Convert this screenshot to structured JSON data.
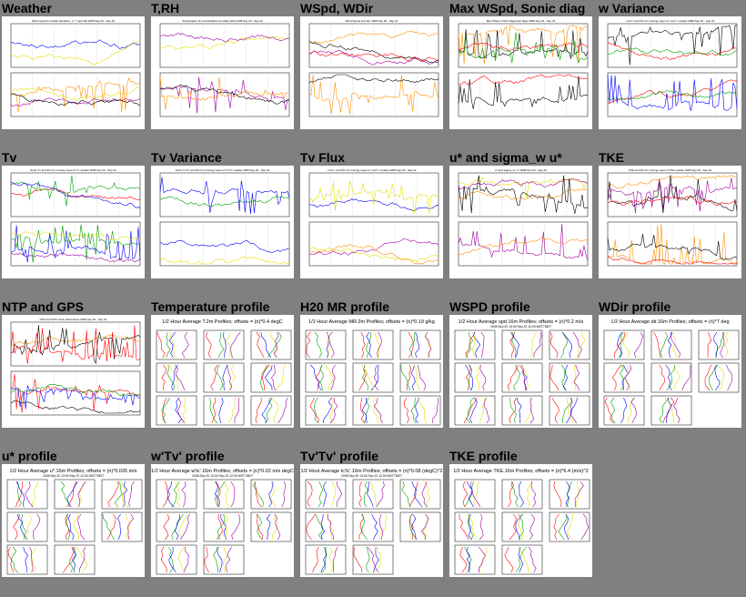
{
  "page": {
    "background": "#808080"
  },
  "colors": {
    "black": "#000000",
    "red": "#ff0000",
    "green": "#00a000",
    "blue": "#0000ff",
    "yellow": "#e0e000",
    "purple": "#a000a0",
    "orange": "#ff9000"
  },
  "timeseries": [
    {
      "id": "weather",
      "label": "Weather",
      "header": "Wind speed & median deviation, u*, T and RH  2008 Sep 20 - Sep 22",
      "icon": "weather-plot-thumbnail-icon"
    },
    {
      "id": "trh",
      "label": "T,RH",
      "header": "Temperature (T) and Relative Humidity (RH) 2008 Sep 20 - Sep 22",
      "icon": "temperature-rh-plot-thumbnail-icon"
    },
    {
      "id": "wspd-wdir",
      "label": "WSpd, WDir",
      "header": "Wind Speed and Dir, 2008 Sep 20 - Sep 22",
      "icon": "wind-speed-direction-plot-thumbnail-icon"
    },
    {
      "id": "max-wspd",
      "label": "Max WSpd, Sonic diag",
      "header": "Max WSpd, CSAT diagnostic flags  2008 Sep 20 - Sep 22",
      "icon": "max-wind-sonic-diag-plot-thumbnail-icon"
    },
    {
      "id": "w-variance",
      "label": "w Variance",
      "header": "<w'w'> and 60 min running mean of <w'w'> median 2008 Sep 20 - Sep 22",
      "icon": "w-variance-plot-thumbnail-icon"
    },
    {
      "id": "tv",
      "label": "Tv",
      "header": "Sonic Tv and 30 min running mean of Tv median 2008 Sep 20 - Sep 22",
      "icon": "virtual-temperature-plot-thumbnail-icon"
    },
    {
      "id": "tv-variance",
      "label": "Tv Variance",
      "header": "Sonic Tv'Tv' and 60 min running mean of Tv'Tv' median 2008 Sep 20 - Sep 22",
      "icon": "tv-variance-plot-thumbnail-icon"
    },
    {
      "id": "tv-flux",
      "label": "Tv Flux",
      "header": "<w'tc'> and 60 min running mean of <w'tc'> median 2008 Sep 20 - Sep 22",
      "icon": "tv-flux-plot-thumbnail-icon"
    },
    {
      "id": "ustar-sigma",
      "label": "u* and sigma_w u*",
      "header": "u* and sigma_w / u*  2008 Sep 20 - Sep 22",
      "icon": "ustar-sigma-plot-thumbnail-icon"
    },
    {
      "id": "tke",
      "label": "TKE",
      "header": "TKE and 60 min running mean of TKE median 2008 Sep 20 - Sep 22",
      "icon": "tke-plot-thumbnail-icon"
    },
    {
      "id": "ntp-gps",
      "label": "NTP and GPS",
      "header": "NTP and GPS Clock Parameters 2008 Sep 20 - Sep 22",
      "icon": "ntp-gps-plot-thumbnail-icon"
    }
  ],
  "profiles": [
    {
      "id": "temperature-profile",
      "label": "Temperature profile",
      "title": "1/2 Hour Average T.2m Profiles; offsets = (n)*0.4 degC",
      "subtitle": "",
      "icon": "temperature-profile-thumbnail-icon",
      "panels": 9
    },
    {
      "id": "h2o-profile",
      "label": "H20 MR profile",
      "title": "1/2 Hour Average MR.2m Profiles; offsets = (n)*0.19 g/kg",
      "subtitle": "",
      "icon": "h2o-mr-profile-thumbnail-icon",
      "panels": 9
    },
    {
      "id": "wspd-profile",
      "label": "WSPD profile",
      "title": "1/2 Hour Average spd.16m Profiles; offsets = (n)*0.2 m/s",
      "subtitle": "2008 Sep 20 13:00 Sep 22 12:00 MST7MDT",
      "icon": "wspd-profile-thumbnail-icon",
      "panels": 9
    },
    {
      "id": "wdir-profile",
      "label": "WDir profile",
      "title": "1/2 Hour Average dir.16m Profiles; offsets = (n)*7 deg",
      "subtitle": "",
      "icon": "wdir-profile-thumbnail-icon",
      "panels": 8
    },
    {
      "id": "ustar-profile",
      "label": "u* profile",
      "title": "1/2 Hour Average u*.16m Profiles; offsets = (n)*0.026 m/s",
      "subtitle": "2008 Sep 20 13:00 Sep 22 12:00 MST7MDT",
      "icon": "ustar-profile-thumbnail-icon",
      "panels": 8
    },
    {
      "id": "wtv-profile",
      "label": "w'Tv' profile",
      "title": "1/2 Hour Average w'tc'.16m Profiles; offsets = (n)*0.02 m/s degC",
      "subtitle": "2008 Sep 20 13:00 Sep 22 12:00 MST7MDT",
      "icon": "wtv-profile-thumbnail-icon",
      "panels": 8
    },
    {
      "id": "tvtv-profile",
      "label": "Tv'Tv' profile",
      "title": "1/2 Hour Average tc'tc'.16m Profiles; offsets = (n)*0.08 (degC)^2",
      "subtitle": "2008 Sep 20 13:00 Sep 22 12:00 MST7MDT",
      "icon": "tvtv-profile-thumbnail-icon",
      "panels": 8
    },
    {
      "id": "tke-profile",
      "label": "TKE profile",
      "title": "1/2 Hour Average TKE.16m Profiles; offsets = (n)*6.4 (m/s)^2",
      "subtitle": "",
      "icon": "tke-profile-thumbnail-icon",
      "panels": 8
    }
  ]
}
